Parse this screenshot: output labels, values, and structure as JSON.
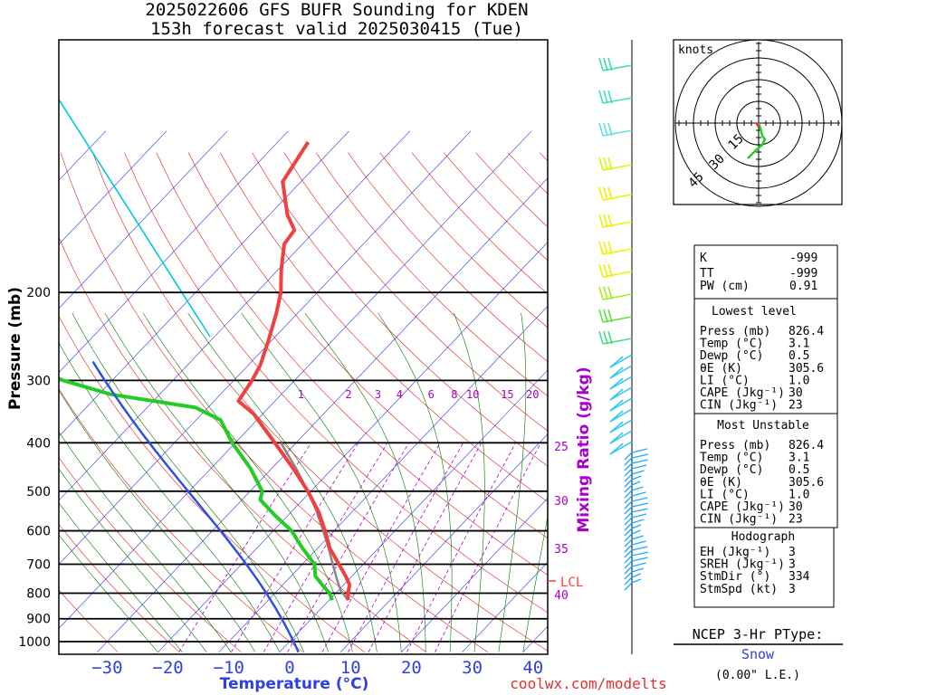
{
  "header": {
    "title_line1": "2025022606 GFS BUFR Sounding for KDEN",
    "title_line2": "153h forecast valid 2025030415 (Tue)"
  },
  "footer": {
    "credit": "coolwx.com/modelts"
  },
  "colors": {
    "temperature": "#f04040",
    "dewpoint": "#22cc22",
    "parcel": "#3050dd",
    "isotherm": "#3030e0",
    "dry_adiabat": "#e02020",
    "moist_adiabat": "#007700",
    "mixing_ratio": "#aa00cc",
    "ice_line": "#00c8d8",
    "lcl": "#ff4040"
  },
  "chart_data": {
    "type": "skew-t",
    "xlabel": "Temperature (°C)",
    "ylabel": "Pressure (mb)",
    "x_ticks": [
      -30,
      -20,
      -10,
      0,
      10,
      20,
      30,
      40
    ],
    "y_ticks": [
      200,
      300,
      400,
      500,
      600,
      700,
      800,
      900,
      1000
    ],
    "mixing_ratio_label": "Mixing Ratio (g/kg)",
    "mixing_ratio_values": [
      1,
      2,
      3,
      4,
      6,
      8,
      10,
      15,
      20
    ],
    "moist_adiabat_labels": [
      25,
      30,
      35,
      40
    ],
    "lcl": {
      "label": "LCL",
      "pressure": 790
    },
    "temperature": [
      {
        "p": 826,
        "t": 3.1
      },
      {
        "p": 800,
        "t": 2.0
      },
      {
        "p": 770,
        "t": 1.0
      },
      {
        "p": 740,
        "t": -1.0
      },
      {
        "p": 700,
        "t": -4.0
      },
      {
        "p": 650,
        "t": -8.0
      },
      {
        "p": 600,
        "t": -11.5
      },
      {
        "p": 550,
        "t": -15.5
      },
      {
        "p": 500,
        "t": -20.5
      },
      {
        "p": 450,
        "t": -26.5
      },
      {
        "p": 400,
        "t": -33.5
      },
      {
        "p": 350,
        "t": -41.5
      },
      {
        "p": 330,
        "t": -46.0
      },
      {
        "p": 300,
        "t": -47.0
      },
      {
        "p": 280,
        "t": -48.0
      },
      {
        "p": 250,
        "t": -50.5
      },
      {
        "p": 220,
        "t": -53.5
      },
      {
        "p": 200,
        "t": -56.0
      },
      {
        "p": 180,
        "t": -59.5
      },
      {
        "p": 160,
        "t": -63.0
      },
      {
        "p": 150,
        "t": -63.5
      },
      {
        "p": 140,
        "t": -67.0
      },
      {
        "p": 120,
        "t": -73.0
      },
      {
        "p": 100,
        "t": -75.0
      }
    ],
    "dewpoint": [
      {
        "p": 826,
        "t": 0.5
      },
      {
        "p": 800,
        "t": -1.0
      },
      {
        "p": 770,
        "t": -3.5
      },
      {
        "p": 740,
        "t": -6.0
      },
      {
        "p": 700,
        "t": -8.0
      },
      {
        "p": 650,
        "t": -12.5
      },
      {
        "p": 600,
        "t": -17.0
      },
      {
        "p": 560,
        "t": -22.0
      },
      {
        "p": 520,
        "t": -27.0
      },
      {
        "p": 500,
        "t": -28.0
      },
      {
        "p": 450,
        "t": -33.5
      },
      {
        "p": 400,
        "t": -40.5
      },
      {
        "p": 360,
        "t": -46.0
      },
      {
        "p": 340,
        "t": -52.0
      },
      {
        "p": 320,
        "t": -68.0
      },
      {
        "p": 300,
        "t": -78.0
      },
      {
        "p": 285,
        "t": -84.0
      }
    ],
    "parcel_path": [
      {
        "p": 826,
        "t": 3.1
      },
      {
        "p": 790,
        "t": 0.4
      },
      {
        "p": 750,
        "t": -2.0
      },
      {
        "p": 700,
        "t": -5.0
      },
      {
        "p": 650,
        "t": -8.2
      },
      {
        "p": 600,
        "t": -11.8
      },
      {
        "p": 550,
        "t": -15.8
      },
      {
        "p": 500,
        "t": -20.5
      },
      {
        "p": 450,
        "t": -26.0
      },
      {
        "p": 400,
        "t": -32.5
      }
    ],
    "wind_profile_note": "wind barbs colored by height",
    "hodograph": {
      "units_label": "knots",
      "ring_labels": [
        15,
        30,
        45
      ]
    }
  },
  "indices": {
    "k_label": "K",
    "k_value": "-999",
    "tt_label": "TT",
    "tt_value": "-999",
    "pw_label": "PW (cm)",
    "pw_value": "0.91",
    "lowest_level": {
      "heading": "Lowest level",
      "rows": [
        {
          "label": "Press (mb)",
          "value": "826.4"
        },
        {
          "label": "Temp (°C)",
          "value": "3.1"
        },
        {
          "label": "Dewp (°C)",
          "value": "0.5"
        },
        {
          "label": "θE (K)",
          "value": "305.6"
        },
        {
          "label": "LI (°C)",
          "value": "1.0"
        },
        {
          "label": "CAPE (Jkg⁻¹)",
          "value": "30"
        },
        {
          "label": "CIN (Jkg⁻¹)",
          "value": "23"
        }
      ]
    },
    "most_unstable": {
      "heading": "Most Unstable",
      "rows": [
        {
          "label": "Press (mb)",
          "value": "826.4"
        },
        {
          "label": "Temp (°C)",
          "value": "3.1"
        },
        {
          "label": "Dewp (°C)",
          "value": "0.5"
        },
        {
          "label": "θE (K)",
          "value": "305.6"
        },
        {
          "label": "LI (°C)",
          "value": "1.0"
        },
        {
          "label": "CAPE (Jkg⁻¹)",
          "value": "30"
        },
        {
          "label": "CIN (Jkg⁻¹)",
          "value": "23"
        }
      ]
    },
    "hodograph_box": {
      "heading": "Hodograph",
      "rows": [
        {
          "label": "EH (Jkg⁻¹)",
          "value": "3"
        },
        {
          "label": "SREH (Jkg⁻¹)",
          "value": "3"
        },
        {
          "label": "StmDir (°)",
          "value": "334"
        },
        {
          "label": "StmSpd (kt)",
          "value": "3"
        }
      ]
    }
  },
  "ptype": {
    "heading": "NCEP 3-Hr PType:",
    "value": "Snow",
    "amount": "(0.00\" L.E.)"
  }
}
